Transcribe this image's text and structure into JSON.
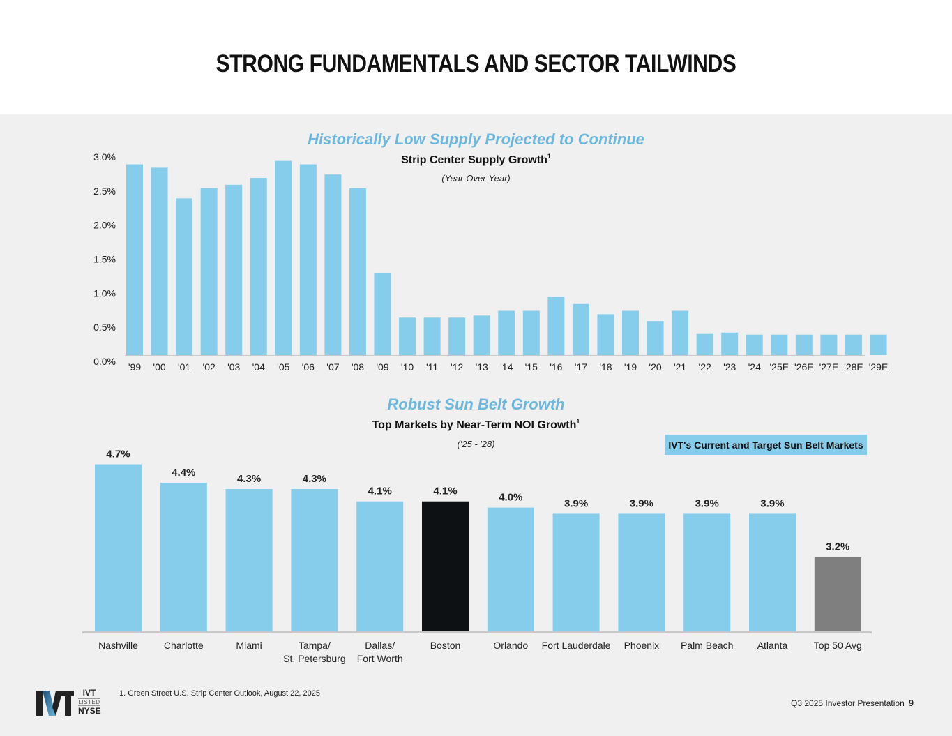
{
  "page": {
    "title": "STRONG FUNDAMENTALS AND SECTOR TAILWINDS",
    "footnote": "1.  Green Street U.S. Strip Center Outlook, August 22, 2025",
    "footer_label": "Q3 2025 Investor Presentation",
    "page_number": "9",
    "logo": {
      "mark": "IVT",
      "ticker": "IVT",
      "listed": "LISTED",
      "exchange": "NYSE"
    }
  },
  "colors": {
    "bar_blue": "#86cceb",
    "highlight_black": "#0d1114",
    "avg_gray": "#7f7f7f",
    "heading_blue": "#6cb7db",
    "axis_gray": "#c8c8c8"
  },
  "chart_data": [
    {
      "type": "bar",
      "heading": "Historically Low Supply Projected to Continue",
      "title": "Strip Center Supply Growth",
      "title_superscript": "1",
      "subtitle": "(Year-Over-Year)",
      "xlabel": "",
      "ylabel": "",
      "ylim": [
        0,
        3.0
      ],
      "yticks": [
        "0.0%",
        "0.5%",
        "1.0%",
        "1.5%",
        "2.0%",
        "2.5%",
        "3.0%"
      ],
      "ytick_values": [
        0,
        0.5,
        1.0,
        1.5,
        2.0,
        2.5,
        3.0
      ],
      "grid": false,
      "categories": [
        "'99",
        "'00",
        "'01",
        "'02",
        "'03",
        "'04",
        "'05",
        "'06",
        "'07",
        "'08",
        "'09",
        "'10",
        "'11",
        "'12",
        "'13",
        "'14",
        "'15",
        "'16",
        "'17",
        "'18",
        "'19",
        "'20",
        "'21",
        "'22",
        "'23",
        "'24",
        "'25E",
        "'26E",
        "'27E",
        "'28E",
        "'29E"
      ],
      "values": [
        2.8,
        2.75,
        2.3,
        2.45,
        2.5,
        2.6,
        2.85,
        2.8,
        2.65,
        2.45,
        1.2,
        0.55,
        0.55,
        0.55,
        0.58,
        0.65,
        0.65,
        0.85,
        0.75,
        0.6,
        0.65,
        0.5,
        0.65,
        0.31,
        0.33,
        0.3,
        0.3,
        0.3,
        0.3,
        0.3,
        0.3
      ]
    },
    {
      "type": "bar",
      "heading": "Robust Sun Belt Growth",
      "title": "Top Markets by Near-Term NOI Growth",
      "title_superscript": "1",
      "subtitle": "('25 - '28)",
      "legend": "IVT's Current and Target Sun Belt Markets",
      "legend_placement": "top-right",
      "ylim": [
        2.0,
        4.8
      ],
      "grid": false,
      "categories": [
        "Nashville",
        "Charlotte",
        "Miami",
        "Tampa/\nSt. Petersburg",
        "Dallas/\nFort Worth",
        "Boston",
        "Orlando",
        "Fort Lauderdale",
        "Phoenix",
        "Palm Beach",
        "Atlanta",
        "Top 50 Avg"
      ],
      "values": [
        4.7,
        4.4,
        4.3,
        4.3,
        4.1,
        4.1,
        4.0,
        3.9,
        3.9,
        3.9,
        3.9,
        3.2
      ],
      "data_labels": [
        "4.7%",
        "4.4%",
        "4.3%",
        "4.3%",
        "4.1%",
        "4.1%",
        "4.0%",
        "3.9%",
        "3.9%",
        "3.9%",
        "3.9%",
        "3.2%"
      ],
      "bar_groups": [
        "sunbelt",
        "sunbelt",
        "sunbelt",
        "sunbelt",
        "sunbelt",
        "boston",
        "sunbelt",
        "sunbelt",
        "sunbelt",
        "sunbelt",
        "sunbelt",
        "average"
      ]
    }
  ]
}
